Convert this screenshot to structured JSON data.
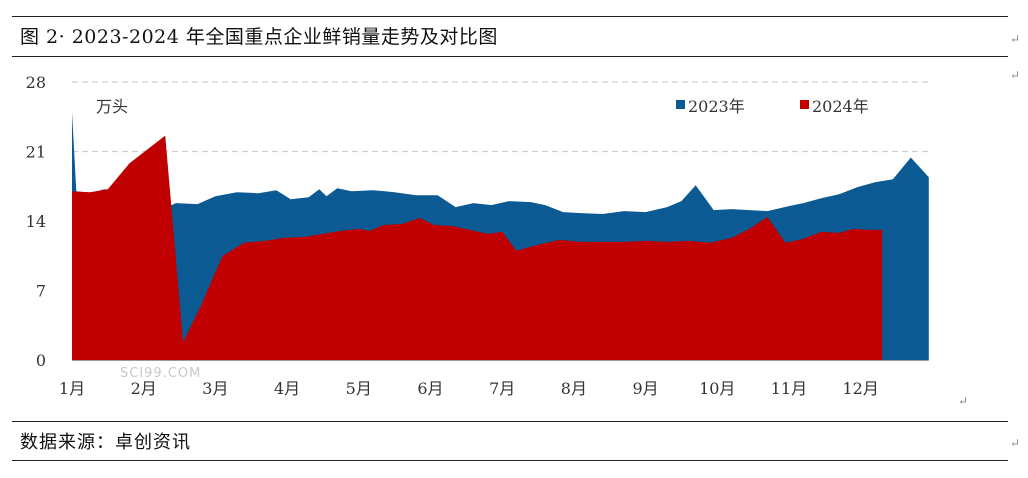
{
  "title": "图 2· 2023-2024 年全国重点企业鲜销量走势及对比图",
  "source": "数据来源：卓创资讯",
  "watermark": "SCI99.COM",
  "paragraph_mark": "↵",
  "chart_data": {
    "type": "area",
    "title": "图 2· 2023-2024 年全国重点企业鲜销量走势及对比图",
    "unit_label": "万头",
    "ylim": [
      0,
      28
    ],
    "yticks": [
      0,
      7,
      14,
      21,
      28
    ],
    "grid": "dashed-horizontal",
    "legend_position": "top-right",
    "x_range": [
      1,
      12.8
    ],
    "categories": [
      "1月",
      "2月",
      "3月",
      "4月",
      "5月",
      "6月",
      "7月",
      "8月",
      "9月",
      "10月",
      "11月",
      "12月"
    ],
    "series": [
      {
        "name": "2023年",
        "color": "#0b5a94",
        "points": [
          [
            1.0,
            25.0
          ],
          [
            1.06,
            17.0
          ],
          [
            1.25,
            16.8
          ],
          [
            1.45,
            17.2
          ],
          [
            1.7,
            17.0
          ],
          [
            1.95,
            16.8
          ],
          [
            2.15,
            16.5
          ],
          [
            2.2,
            15.0
          ],
          [
            2.45,
            15.8
          ],
          [
            2.75,
            15.7
          ],
          [
            3.0,
            16.5
          ],
          [
            3.3,
            16.9
          ],
          [
            3.6,
            16.8
          ],
          [
            3.85,
            17.1
          ],
          [
            4.05,
            16.2
          ],
          [
            4.3,
            16.4
          ],
          [
            4.45,
            17.2
          ],
          [
            4.55,
            16.5
          ],
          [
            4.7,
            17.3
          ],
          [
            4.9,
            17.0
          ],
          [
            5.2,
            17.1
          ],
          [
            5.5,
            16.9
          ],
          [
            5.8,
            16.6
          ],
          [
            6.1,
            16.6
          ],
          [
            6.35,
            15.4
          ],
          [
            6.6,
            15.8
          ],
          [
            6.85,
            15.6
          ],
          [
            7.1,
            16.0
          ],
          [
            7.4,
            15.9
          ],
          [
            7.6,
            15.6
          ],
          [
            7.85,
            14.9
          ],
          [
            8.1,
            14.8
          ],
          [
            8.4,
            14.7
          ],
          [
            8.7,
            15.0
          ],
          [
            9.0,
            14.9
          ],
          [
            9.3,
            15.4
          ],
          [
            9.5,
            16.0
          ],
          [
            9.7,
            17.6
          ],
          [
            9.95,
            15.1
          ],
          [
            10.2,
            15.2
          ],
          [
            10.45,
            15.1
          ],
          [
            10.7,
            15.0
          ],
          [
            11.0,
            15.5
          ],
          [
            11.2,
            15.8
          ],
          [
            11.45,
            16.3
          ],
          [
            11.7,
            16.7
          ],
          [
            11.95,
            17.4
          ],
          [
            12.2,
            17.9
          ],
          [
            12.45,
            18.2
          ],
          [
            12.7,
            20.4
          ],
          [
            12.95,
            18.4
          ]
        ]
      },
      {
        "name": "2024年",
        "color": "#c00000",
        "points": [
          [
            1.0,
            17.0
          ],
          [
            1.25,
            16.9
          ],
          [
            1.5,
            17.2
          ],
          [
            1.8,
            19.8
          ],
          [
            2.05,
            21.2
          ],
          [
            2.3,
            22.6
          ],
          [
            2.55,
            1.8
          ],
          [
            2.8,
            5.5
          ],
          [
            3.1,
            10.5
          ],
          [
            3.4,
            11.8
          ],
          [
            3.7,
            12.0
          ],
          [
            3.95,
            12.3
          ],
          [
            4.25,
            12.4
          ],
          [
            4.5,
            12.7
          ],
          [
            4.75,
            13.0
          ],
          [
            5.0,
            13.2
          ],
          [
            5.15,
            13.0
          ],
          [
            5.35,
            13.6
          ],
          [
            5.6,
            13.7
          ],
          [
            5.85,
            14.3
          ],
          [
            6.05,
            13.6
          ],
          [
            6.3,
            13.5
          ],
          [
            6.55,
            13.1
          ],
          [
            6.8,
            12.7
          ],
          [
            7.0,
            12.9
          ],
          [
            7.2,
            11.0
          ],
          [
            7.5,
            11.6
          ],
          [
            7.8,
            12.1
          ],
          [
            8.1,
            11.9
          ],
          [
            8.4,
            11.9
          ],
          [
            8.7,
            11.9
          ],
          [
            9.0,
            12.0
          ],
          [
            9.3,
            11.9
          ],
          [
            9.6,
            12.0
          ],
          [
            9.9,
            11.8
          ],
          [
            10.2,
            12.3
          ],
          [
            10.45,
            13.2
          ],
          [
            10.7,
            14.4
          ],
          [
            10.95,
            11.8
          ],
          [
            11.2,
            12.2
          ],
          [
            11.45,
            12.9
          ],
          [
            11.7,
            12.8
          ],
          [
            11.9,
            13.2
          ],
          [
            12.15,
            13.1
          ],
          [
            12.3,
            13.1
          ]
        ]
      }
    ]
  }
}
